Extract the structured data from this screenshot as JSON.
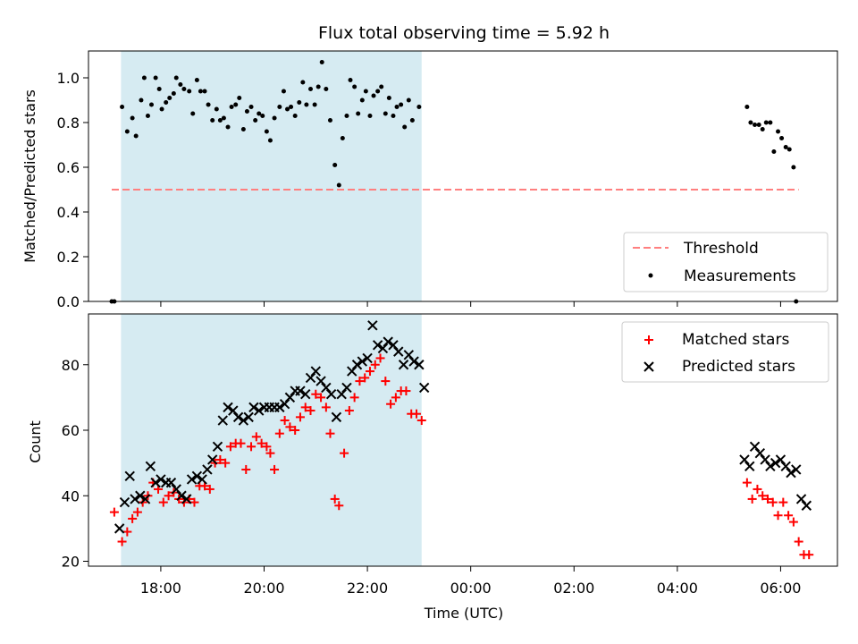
{
  "title": "Flux total observing time = 5.92 h",
  "chart_data": [
    {
      "type": "scatter",
      "ylabel": "Matched/Predicted stars",
      "xlabel": "",
      "xlim": [
        16.6,
        31.1
      ],
      "ylim": [
        0.0,
        1.12
      ],
      "yticks": [
        0.0,
        0.2,
        0.4,
        0.6,
        0.8,
        1.0
      ],
      "ytick_labels": [
        "0.0",
        "0.2",
        "0.4",
        "0.6",
        "0.8",
        "1.0"
      ],
      "shaded_band": [
        17.23,
        23.05
      ],
      "shade_color": "#add8e6",
      "legend": {
        "position": "lower-right",
        "entries": [
          {
            "label": "Threshold",
            "marker": "dashed-line",
            "color": "#ff7f7f"
          },
          {
            "label": "Measurements",
            "marker": "dot",
            "color": "#000000"
          }
        ]
      },
      "threshold": {
        "name": "Threshold",
        "y": 0.5,
        "x": [
          17.05,
          30.35
        ],
        "color": "#ff7f7f"
      },
      "series": [
        {
          "name": "Measurements",
          "color": "#000000",
          "points": [
            [
              17.05,
              0.0
            ],
            [
              17.1,
              0.0
            ],
            [
              17.25,
              0.87
            ],
            [
              17.35,
              0.76
            ],
            [
              17.45,
              0.82
            ],
            [
              17.52,
              0.74
            ],
            [
              17.62,
              0.9
            ],
            [
              17.68,
              1.0
            ],
            [
              17.75,
              0.83
            ],
            [
              17.82,
              0.88
            ],
            [
              17.9,
              1.0
            ],
            [
              17.97,
              0.95
            ],
            [
              18.02,
              0.86
            ],
            [
              18.1,
              0.89
            ],
            [
              18.17,
              0.91
            ],
            [
              18.25,
              0.93
            ],
            [
              18.3,
              1.0
            ],
            [
              18.38,
              0.97
            ],
            [
              18.45,
              0.95
            ],
            [
              18.55,
              0.94
            ],
            [
              18.62,
              0.84
            ],
            [
              18.7,
              0.99
            ],
            [
              18.77,
              0.94
            ],
            [
              18.85,
              0.94
            ],
            [
              18.92,
              0.88
            ],
            [
              19.0,
              0.81
            ],
            [
              19.08,
              0.86
            ],
            [
              19.15,
              0.81
            ],
            [
              19.22,
              0.82
            ],
            [
              19.3,
              0.78
            ],
            [
              19.37,
              0.87
            ],
            [
              19.45,
              0.88
            ],
            [
              19.52,
              0.91
            ],
            [
              19.6,
              0.77
            ],
            [
              19.67,
              0.85
            ],
            [
              19.75,
              0.87
            ],
            [
              19.83,
              0.81
            ],
            [
              19.9,
              0.84
            ],
            [
              19.97,
              0.83
            ],
            [
              20.05,
              0.76
            ],
            [
              20.12,
              0.72
            ],
            [
              20.2,
              0.82
            ],
            [
              20.3,
              0.87
            ],
            [
              20.38,
              0.94
            ],
            [
              20.45,
              0.86
            ],
            [
              20.52,
              0.87
            ],
            [
              20.6,
              0.83
            ],
            [
              20.68,
              0.89
            ],
            [
              20.75,
              0.98
            ],
            [
              20.82,
              0.88
            ],
            [
              20.9,
              0.95
            ],
            [
              20.98,
              0.88
            ],
            [
              21.05,
              0.96
            ],
            [
              21.12,
              1.07
            ],
            [
              21.2,
              0.95
            ],
            [
              21.28,
              0.81
            ],
            [
              21.37,
              0.61
            ],
            [
              21.45,
              0.52
            ],
            [
              21.52,
              0.73
            ],
            [
              21.6,
              0.83
            ],
            [
              21.67,
              0.99
            ],
            [
              21.75,
              0.96
            ],
            [
              21.82,
              0.84
            ],
            [
              21.9,
              0.9
            ],
            [
              21.97,
              0.94
            ],
            [
              22.05,
              0.83
            ],
            [
              22.12,
              0.92
            ],
            [
              22.2,
              0.94
            ],
            [
              22.27,
              0.96
            ],
            [
              22.35,
              0.84
            ],
            [
              22.42,
              0.91
            ],
            [
              22.5,
              0.83
            ],
            [
              22.57,
              0.87
            ],
            [
              22.65,
              0.88
            ],
            [
              22.72,
              0.78
            ],
            [
              22.8,
              0.9
            ],
            [
              22.87,
              0.81
            ],
            [
              23.0,
              0.87
            ],
            [
              29.35,
              0.87
            ],
            [
              29.42,
              0.8
            ],
            [
              29.5,
              0.79
            ],
            [
              29.58,
              0.79
            ],
            [
              29.65,
              0.77
            ],
            [
              29.72,
              0.8
            ],
            [
              29.8,
              0.8
            ],
            [
              29.87,
              0.67
            ],
            [
              29.95,
              0.76
            ],
            [
              30.02,
              0.73
            ],
            [
              30.1,
              0.69
            ],
            [
              30.17,
              0.68
            ],
            [
              30.25,
              0.6
            ],
            [
              30.3,
              0.0
            ]
          ]
        }
      ]
    },
    {
      "type": "scatter",
      "ylabel": "Count",
      "xlabel": "Time (UTC)",
      "xlim": [
        16.6,
        31.1
      ],
      "ylim": [
        18.5,
        95.5
      ],
      "yticks": [
        20,
        40,
        60,
        80
      ],
      "ytick_labels": [
        "20",
        "40",
        "60",
        "80"
      ],
      "xticks": [
        18,
        20,
        22,
        24,
        26,
        28,
        30
      ],
      "xtick_labels": [
        "18:00",
        "20:00",
        "22:00",
        "00:00",
        "02:00",
        "04:00",
        "06:00"
      ],
      "shaded_band": [
        17.23,
        23.05
      ],
      "shade_color": "#add8e6",
      "legend": {
        "position": "top-right",
        "entries": [
          {
            "label": "Matched stars",
            "marker": "plus",
            "color": "#ff0000"
          },
          {
            "label": "Predicted stars",
            "marker": "x",
            "color": "#000000"
          }
        ]
      },
      "series": [
        {
          "name": "Matched stars",
          "marker": "plus",
          "color": "#ff0000",
          "points": [
            [
              17.1,
              35
            ],
            [
              17.25,
              26
            ],
            [
              17.35,
              29
            ],
            [
              17.45,
              33
            ],
            [
              17.55,
              35
            ],
            [
              17.65,
              38
            ],
            [
              17.75,
              40
            ],
            [
              17.85,
              44
            ],
            [
              17.95,
              42
            ],
            [
              18.05,
              38
            ],
            [
              18.15,
              40
            ],
            [
              18.25,
              41
            ],
            [
              18.35,
              39
            ],
            [
              18.45,
              38
            ],
            [
              18.55,
              39
            ],
            [
              18.65,
              38
            ],
            [
              18.75,
              43
            ],
            [
              18.85,
              43
            ],
            [
              18.95,
              42
            ],
            [
              19.05,
              50
            ],
            [
              19.15,
              51
            ],
            [
              19.25,
              50
            ],
            [
              19.35,
              55
            ],
            [
              19.45,
              56
            ],
            [
              19.55,
              56
            ],
            [
              19.65,
              48
            ],
            [
              19.75,
              55
            ],
            [
              19.85,
              58
            ],
            [
              19.95,
              56
            ],
            [
              20.05,
              55
            ],
            [
              20.12,
              53
            ],
            [
              20.2,
              48
            ],
            [
              20.3,
              59
            ],
            [
              20.4,
              63
            ],
            [
              20.5,
              61
            ],
            [
              20.6,
              60
            ],
            [
              20.7,
              64
            ],
            [
              20.8,
              67
            ],
            [
              20.9,
              66
            ],
            [
              21.0,
              71
            ],
            [
              21.1,
              70
            ],
            [
              21.2,
              67
            ],
            [
              21.28,
              59
            ],
            [
              21.37,
              39
            ],
            [
              21.45,
              37
            ],
            [
              21.55,
              53
            ],
            [
              21.65,
              66
            ],
            [
              21.75,
              70
            ],
            [
              21.85,
              75
            ],
            [
              21.95,
              76
            ],
            [
              22.05,
              78
            ],
            [
              22.15,
              80
            ],
            [
              22.25,
              82
            ],
            [
              22.35,
              75
            ],
            [
              22.45,
              68
            ],
            [
              22.55,
              70
            ],
            [
              22.65,
              72
            ],
            [
              22.75,
              72
            ],
            [
              22.85,
              65
            ],
            [
              22.95,
              65
            ],
            [
              23.05,
              63
            ],
            [
              29.35,
              44
            ],
            [
              29.45,
              39
            ],
            [
              29.55,
              42
            ],
            [
              29.65,
              40
            ],
            [
              29.75,
              39
            ],
            [
              29.85,
              38
            ],
            [
              29.95,
              34
            ],
            [
              30.05,
              38
            ],
            [
              30.15,
              34
            ],
            [
              30.25,
              32
            ],
            [
              30.35,
              26
            ],
            [
              30.45,
              22
            ],
            [
              30.55,
              22
            ]
          ]
        },
        {
          "name": "Predicted stars",
          "marker": "x",
          "color": "#000000",
          "points": [
            [
              17.2,
              30
            ],
            [
              17.3,
              38
            ],
            [
              17.4,
              46
            ],
            [
              17.5,
              39
            ],
            [
              17.6,
              40
            ],
            [
              17.7,
              39
            ],
            [
              17.8,
              49
            ],
            [
              17.9,
              44
            ],
            [
              18.0,
              45
            ],
            [
              18.1,
              44
            ],
            [
              18.2,
              44
            ],
            [
              18.3,
              42
            ],
            [
              18.4,
              40
            ],
            [
              18.5,
              39
            ],
            [
              18.6,
              45
            ],
            [
              18.7,
              46
            ],
            [
              18.8,
              45
            ],
            [
              18.9,
              48
            ],
            [
              19.0,
              51
            ],
            [
              19.1,
              55
            ],
            [
              19.2,
              63
            ],
            [
              19.3,
              67
            ],
            [
              19.4,
              66
            ],
            [
              19.5,
              64
            ],
            [
              19.6,
              63
            ],
            [
              19.7,
              64
            ],
            [
              19.8,
              67
            ],
            [
              19.9,
              66
            ],
            [
              20.0,
              67
            ],
            [
              20.1,
              67
            ],
            [
              20.2,
              67
            ],
            [
              20.3,
              67
            ],
            [
              20.4,
              68
            ],
            [
              20.5,
              70
            ],
            [
              20.6,
              72
            ],
            [
              20.7,
              72
            ],
            [
              20.8,
              71
            ],
            [
              20.9,
              76
            ],
            [
              21.0,
              78
            ],
            [
              21.1,
              75
            ],
            [
              21.2,
              73
            ],
            [
              21.3,
              71
            ],
            [
              21.4,
              64
            ],
            [
              21.5,
              71
            ],
            [
              21.6,
              73
            ],
            [
              21.7,
              78
            ],
            [
              21.8,
              80
            ],
            [
              21.9,
              81
            ],
            [
              22.0,
              82
            ],
            [
              22.1,
              92
            ],
            [
              22.2,
              86
            ],
            [
              22.3,
              85
            ],
            [
              22.4,
              87
            ],
            [
              22.5,
              86
            ],
            [
              22.6,
              84
            ],
            [
              22.7,
              80
            ],
            [
              22.8,
              83
            ],
            [
              22.9,
              81
            ],
            [
              23.0,
              80
            ],
            [
              23.1,
              73
            ],
            [
              29.3,
              51
            ],
            [
              29.4,
              49
            ],
            [
              29.5,
              55
            ],
            [
              29.6,
              53
            ],
            [
              29.7,
              51
            ],
            [
              29.8,
              49
            ],
            [
              29.9,
              50
            ],
            [
              30.0,
              51
            ],
            [
              30.1,
              49
            ],
            [
              30.2,
              47
            ],
            [
              30.3,
              48
            ],
            [
              30.4,
              39
            ],
            [
              30.5,
              37
            ]
          ]
        }
      ]
    }
  ]
}
